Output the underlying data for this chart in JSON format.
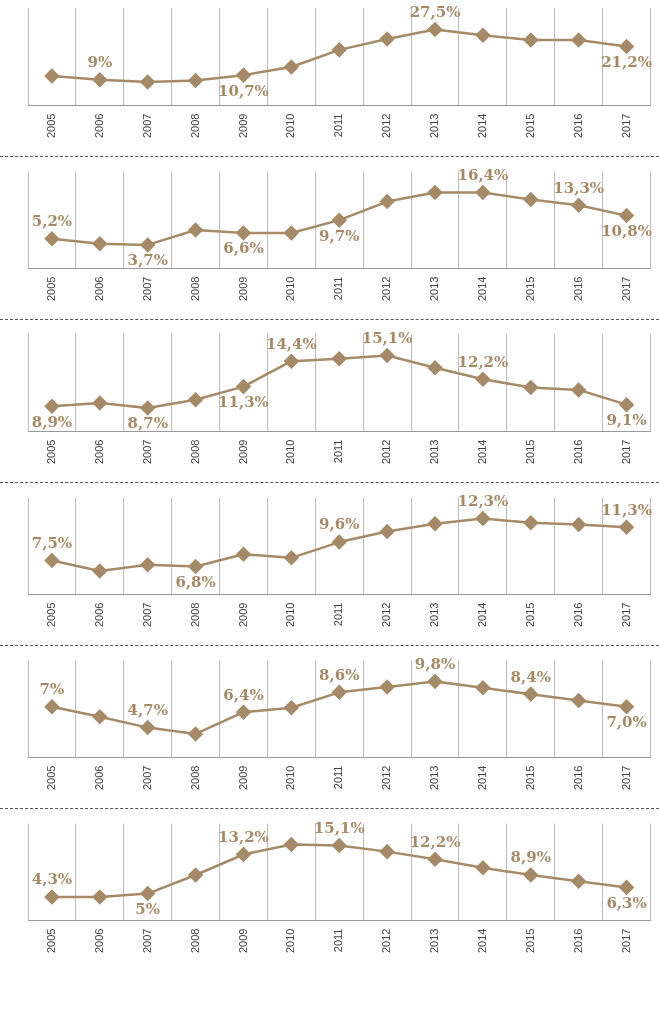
{
  "chart_data": [
    {
      "type": "line",
      "categories": [
        "2005",
        "2006",
        "2007",
        "2008",
        "2009",
        "2010",
        "2011",
        "2012",
        "2013",
        "2014",
        "2015",
        "2016",
        "2017"
      ],
      "series": [
        {
          "color": "#a58a68",
          "values": [
            10.4,
            9,
            8.2,
            8.7,
            10.7,
            13.7,
            20,
            24,
            27.5,
            25.4,
            23.6,
            23.6,
            21.2
          ],
          "value_labels": [
            null,
            "9%",
            null,
            null,
            "10,7%",
            null,
            null,
            null,
            "27,5%",
            null,
            null,
            null,
            "21,2%"
          ]
        }
      ],
      "grid": "x",
      "marker": "diamond",
      "legend": false
    },
    {
      "type": "line",
      "categories": [
        "2005",
        "2006",
        "2007",
        "2008",
        "2009",
        "2010",
        "2011",
        "2012",
        "2013",
        "2014",
        "2015",
        "2016",
        "2017"
      ],
      "series": [
        {
          "color": "#a58a68",
          "values": [
            5.2,
            4.0,
            3.7,
            7.3,
            6.6,
            6.6,
            9.7,
            14.2,
            16.4,
            16.4,
            14.7,
            13.3,
            10.8
          ],
          "value_labels": [
            "5,2%",
            null,
            "3,7%",
            null,
            "6,6%",
            null,
            "9,7%",
            null,
            null,
            "16,4%",
            null,
            "13,3%",
            "10,8%"
          ]
        }
      ],
      "grid": "x",
      "marker": "diamond",
      "legend": false
    },
    {
      "type": "line",
      "categories": [
        "2005",
        "2006",
        "2007",
        "2008",
        "2009",
        "2010",
        "2011",
        "2012",
        "2013",
        "2014",
        "2015",
        "2016",
        "2017"
      ],
      "series": [
        {
          "color": "#a58a68",
          "values": [
            8.9,
            9.3,
            8.7,
            9.7,
            11.3,
            14.4,
            14.7,
            15.1,
            13.6,
            12.2,
            11.2,
            10.9,
            9.1
          ],
          "value_labels": [
            "8,9%",
            null,
            "8,7%",
            null,
            "11,3%",
            "14,4%",
            null,
            "15,1%",
            null,
            "12,2%",
            null,
            null,
            "9,1%"
          ]
        }
      ],
      "grid": "x",
      "marker": "diamond",
      "legend": false
    },
    {
      "type": "line",
      "categories": [
        "2005",
        "2006",
        "2007",
        "2008",
        "2009",
        "2010",
        "2011",
        "2012",
        "2013",
        "2014",
        "2015",
        "2016",
        "2017"
      ],
      "series": [
        {
          "color": "#a58a68",
          "values": [
            7.5,
            6.3,
            7.0,
            6.8,
            8.2,
            7.8,
            9.6,
            10.8,
            11.7,
            12.3,
            11.8,
            11.6,
            11.3
          ],
          "value_labels": [
            "7,5%",
            null,
            null,
            "6,8%",
            null,
            null,
            "9,6%",
            null,
            null,
            "12,3%",
            null,
            null,
            "11,3%"
          ]
        }
      ],
      "grid": "x",
      "marker": "diamond",
      "legend": false
    },
    {
      "type": "line",
      "categories": [
        "2005",
        "2006",
        "2007",
        "2008",
        "2009",
        "2010",
        "2011",
        "2012",
        "2013",
        "2014",
        "2015",
        "2016",
        "2017"
      ],
      "series": [
        {
          "color": "#a58a68",
          "values": [
            7,
            5.9,
            4.7,
            4.0,
            6.4,
            6.9,
            8.6,
            9.2,
            9.8,
            9.1,
            8.4,
            7.7,
            7.0
          ],
          "value_labels": [
            "7%",
            null,
            "4,7%",
            null,
            "6,4%",
            null,
            "8,6%",
            null,
            "9,8%",
            null,
            "8,4%",
            null,
            "7,0%"
          ]
        }
      ],
      "grid": "x",
      "marker": "diamond",
      "legend": false
    },
    {
      "type": "line",
      "categories": [
        "2005",
        "2006",
        "2007",
        "2008",
        "2009",
        "2010",
        "2011",
        "2012",
        "2013",
        "2014",
        "2015",
        "2016",
        "2017"
      ],
      "series": [
        {
          "color": "#a58a68",
          "values": [
            4.3,
            4.3,
            5,
            8.9,
            13.2,
            15.3,
            15.1,
            13.8,
            12.2,
            10.4,
            8.9,
            7.6,
            6.3
          ],
          "value_labels": [
            "4,3%",
            null,
            "5%",
            null,
            "13,2%",
            null,
            "15,1%",
            null,
            "12,2%",
            null,
            "8,9%",
            null,
            "6,3%"
          ]
        }
      ],
      "grid": "x",
      "marker": "diamond",
      "legend": false
    }
  ]
}
